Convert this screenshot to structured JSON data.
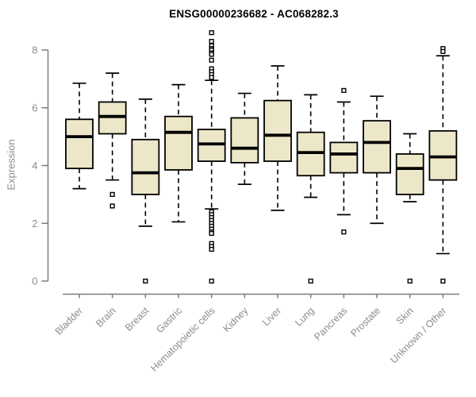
{
  "chart_data": {
    "type": "boxplot",
    "title": "ENSG00000236682 - AC068282.3",
    "ylabel": "Expression",
    "xlabel": "",
    "ylim": [
      0,
      8
    ],
    "yticks": [
      0,
      2,
      4,
      6,
      8
    ],
    "grid": false,
    "legend": false,
    "categories": [
      "Bladder",
      "Brain",
      "Breast",
      "Gastric",
      "Hematopoietic cells",
      "Kidney",
      "Liver",
      "Lung",
      "Pancreas",
      "Prostate",
      "Skin",
      "Unknown / Other"
    ],
    "boxes": [
      {
        "category": "Bladder",
        "whisker_low": 3.2,
        "q1": 3.9,
        "median": 5.0,
        "q3": 5.6,
        "whisker_high": 6.85,
        "outliers": []
      },
      {
        "category": "Brain",
        "whisker_low": 3.5,
        "q1": 5.1,
        "median": 5.7,
        "q3": 6.2,
        "whisker_high": 7.2,
        "outliers": [
          3.0,
          2.6
        ]
      },
      {
        "category": "Breast",
        "whisker_low": 1.9,
        "q1": 3.0,
        "median": 3.75,
        "q3": 4.9,
        "whisker_high": 6.3,
        "outliers": [
          0
        ]
      },
      {
        "category": "Gastric",
        "whisker_low": 2.05,
        "q1": 3.85,
        "median": 5.15,
        "q3": 5.7,
        "whisker_high": 6.8,
        "outliers": []
      },
      {
        "category": "Hematopoietic cells",
        "whisker_low": 2.5,
        "q1": 4.15,
        "median": 4.75,
        "q3": 5.25,
        "whisker_high": 6.95,
        "outliers": [
          8.6,
          8.3,
          8.15,
          8.05,
          8.0,
          7.9,
          7.85,
          7.65,
          7.35,
          7.25,
          7.15,
          7.05,
          2.4,
          2.3,
          2.2,
          2.1,
          2.0,
          1.9,
          1.8,
          1.7,
          1.65,
          1.3,
          1.2,
          1.1,
          0
        ]
      },
      {
        "category": "Kidney",
        "whisker_low": 3.35,
        "q1": 4.1,
        "median": 4.6,
        "q3": 5.65,
        "whisker_high": 6.5,
        "outliers": []
      },
      {
        "category": "Liver",
        "whisker_low": 2.45,
        "q1": 4.15,
        "median": 5.05,
        "q3": 6.25,
        "whisker_high": 7.45,
        "outliers": []
      },
      {
        "category": "Lung",
        "whisker_low": 2.9,
        "q1": 3.65,
        "median": 4.45,
        "q3": 5.15,
        "whisker_high": 6.45,
        "outliers": [
          0
        ]
      },
      {
        "category": "Pancreas",
        "whisker_low": 2.3,
        "q1": 3.75,
        "median": 4.4,
        "q3": 4.8,
        "whisker_high": 6.2,
        "outliers": [
          6.6,
          1.7
        ]
      },
      {
        "category": "Prostate",
        "whisker_low": 2.0,
        "q1": 3.75,
        "median": 4.8,
        "q3": 5.55,
        "whisker_high": 6.4,
        "outliers": []
      },
      {
        "category": "Skin",
        "whisker_low": 2.75,
        "q1": 3.0,
        "median": 3.9,
        "q3": 4.4,
        "whisker_high": 5.1,
        "outliers": [
          0
        ]
      },
      {
        "category": "Unknown / Other",
        "whisker_low": 0.95,
        "q1": 3.5,
        "median": 4.3,
        "q3": 5.2,
        "whisker_high": 7.8,
        "outliers": [
          8.05,
          7.95,
          0
        ]
      }
    ],
    "colors": {
      "background": "#ffffff",
      "box_fill": "#ede7c9",
      "box_border": "#000000",
      "median": "#000000",
      "whisker": "#000000",
      "outlier": "#000000",
      "axis": "#7b7b7b",
      "tick_label": "#8c8c8c",
      "title": "#000000"
    }
  }
}
